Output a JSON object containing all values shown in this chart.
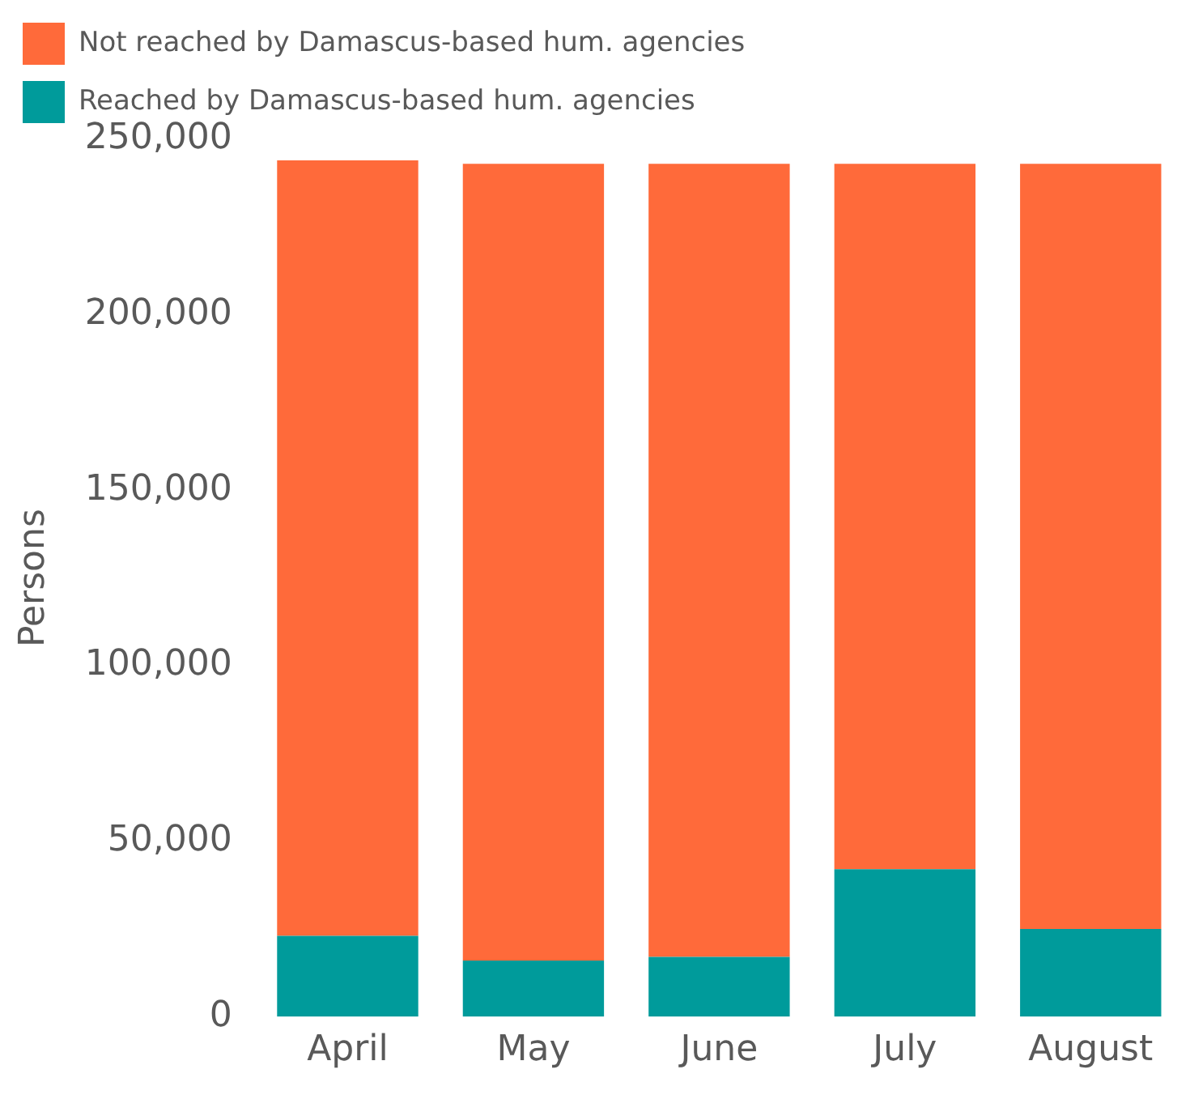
{
  "chart_data": {
    "type": "bar",
    "stacked": true,
    "ylabel": "Persons",
    "categories": [
      "April",
      "May",
      "June",
      "July",
      "August"
    ],
    "series": [
      {
        "name": "Reached by Damascus-based hum. agencies",
        "color": "#009b9b",
        "values": [
          23000,
          16000,
          17000,
          42000,
          25000
        ]
      },
      {
        "name": "Not reached by Damascus-based hum. agencies",
        "color": "#ff6a3a",
        "values": [
          221000,
          227000,
          226000,
          201000,
          218000
        ]
      }
    ],
    "ylim": [
      0,
      250000
    ],
    "yticks": [
      {
        "value": 0,
        "label": "0"
      },
      {
        "value": 50000,
        "label": "50,000"
      },
      {
        "value": 100000,
        "label": "100,000"
      },
      {
        "value": 150000,
        "label": "150,000"
      },
      {
        "value": 200000,
        "label": "200,000"
      },
      {
        "value": 250000,
        "label": "250,000"
      }
    ],
    "grid": false,
    "legend": "top"
  }
}
